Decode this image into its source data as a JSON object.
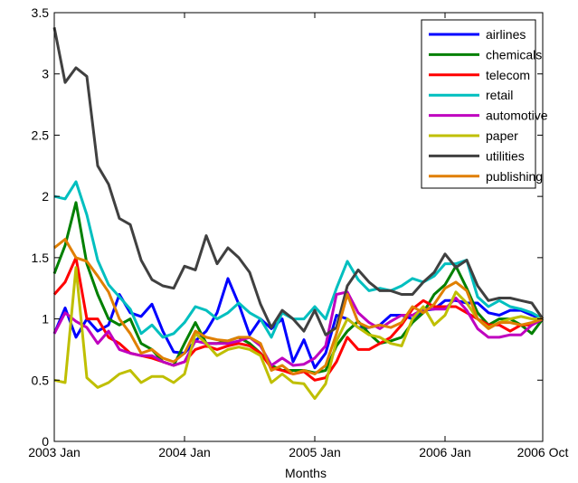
{
  "chart_data": {
    "type": "line",
    "xlabel": "Months",
    "ylabel": "",
    "x_tick_labels": [
      "2003 Jan",
      "2004 Jan",
      "2005 Jan",
      "2006 Jan",
      "2006 Oct"
    ],
    "x_tick_months": [
      0,
      12,
      24,
      36,
      45
    ],
    "y_ticks": [
      "0",
      "0.5",
      "1",
      "1.5",
      "2",
      "2.5",
      "3",
      "3.5"
    ],
    "xlim": [
      0,
      45
    ],
    "ylim": [
      0,
      3.5
    ],
    "grid": false,
    "legend_position": "top-right",
    "x": [
      0,
      1,
      2,
      3,
      4,
      5,
      6,
      7,
      8,
      9,
      10,
      11,
      12,
      13,
      14,
      15,
      16,
      17,
      18,
      19,
      20,
      21,
      22,
      23,
      24,
      25,
      26,
      27,
      28,
      29,
      30,
      31,
      32,
      33,
      34,
      35,
      36,
      37,
      38,
      39,
      40,
      41,
      42,
      43,
      44,
      45
    ],
    "series": [
      {
        "name": "airlines",
        "color": "#0000ff",
        "values": [
          0.88,
          1.09,
          0.85,
          1.0,
          0.9,
          0.95,
          1.2,
          1.05,
          1.02,
          1.12,
          0.9,
          0.73,
          0.72,
          0.82,
          0.9,
          1.05,
          1.33,
          1.12,
          0.87,
          1.0,
          0.92,
          1.0,
          0.65,
          0.83,
          0.6,
          0.72,
          1.03,
          1.0,
          0.93,
          0.93,
          0.95,
          1.03,
          1.03,
          1.0,
          1.07,
          1.08,
          1.15,
          1.15,
          1.13,
          1.13,
          1.05,
          1.03,
          1.07,
          1.07,
          1.03,
          1.0
        ]
      },
      {
        "name": "chemicals",
        "color": "#008000",
        "values": [
          1.37,
          1.6,
          1.95,
          1.45,
          1.2,
          1.0,
          0.95,
          1.0,
          0.8,
          0.75,
          0.65,
          0.62,
          0.8,
          0.97,
          0.8,
          0.8,
          0.82,
          0.85,
          0.8,
          0.72,
          0.62,
          0.58,
          0.58,
          0.58,
          0.56,
          0.58,
          0.78,
          0.9,
          0.98,
          0.88,
          0.8,
          0.82,
          0.85,
          0.97,
          1.05,
          1.2,
          1.28,
          1.43,
          1.25,
          1.05,
          0.95,
          1.0,
          1.0,
          0.95,
          0.88,
          1.0
        ]
      },
      {
        "name": "telecom",
        "color": "#ff0000",
        "values": [
          1.2,
          1.3,
          1.5,
          1.0,
          1.0,
          0.85,
          0.8,
          0.72,
          0.7,
          0.68,
          0.65,
          0.62,
          0.65,
          0.75,
          0.78,
          0.75,
          0.78,
          0.8,
          0.78,
          0.72,
          0.6,
          0.58,
          0.55,
          0.57,
          0.5,
          0.52,
          0.65,
          0.85,
          0.75,
          0.75,
          0.8,
          0.85,
          0.95,
          1.08,
          1.15,
          1.1,
          1.1,
          1.1,
          1.05,
          1.0,
          0.95,
          0.95,
          0.9,
          0.95,
          0.95,
          1.0
        ]
      },
      {
        "name": "retail",
        "color": "#00bfbf",
        "values": [
          2.0,
          1.98,
          2.12,
          1.85,
          1.48,
          1.28,
          1.18,
          1.08,
          0.88,
          0.95,
          0.85,
          0.88,
          0.97,
          1.1,
          1.07,
          1.0,
          1.05,
          1.13,
          1.05,
          1.0,
          0.85,
          1.05,
          1.0,
          1.0,
          1.1,
          1.0,
          1.25,
          1.47,
          1.32,
          1.23,
          1.25,
          1.23,
          1.27,
          1.33,
          1.3,
          1.35,
          1.45,
          1.45,
          1.48,
          1.18,
          1.1,
          1.15,
          1.1,
          1.08,
          1.05,
          1.0
        ]
      },
      {
        "name": "automotive",
        "color": "#bf00bf",
        "values": [
          0.88,
          1.05,
          0.98,
          0.93,
          0.8,
          0.9,
          0.75,
          0.72,
          0.7,
          0.7,
          0.65,
          0.62,
          0.65,
          0.82,
          0.8,
          0.8,
          0.8,
          0.82,
          0.85,
          0.78,
          0.62,
          0.68,
          0.62,
          0.63,
          0.68,
          0.78,
          1.2,
          1.22,
          1.05,
          0.97,
          0.92,
          0.98,
          1.03,
          1.03,
          1.08,
          1.08,
          1.08,
          1.17,
          1.07,
          0.92,
          0.85,
          0.85,
          0.87,
          0.87,
          0.95,
          1.0
        ]
      },
      {
        "name": "paper",
        "color": "#bfbf00",
        "values": [
          0.5,
          0.48,
          1.42,
          0.52,
          0.44,
          0.48,
          0.55,
          0.58,
          0.48,
          0.53,
          0.53,
          0.48,
          0.55,
          0.88,
          0.8,
          0.7,
          0.75,
          0.77,
          0.75,
          0.7,
          0.48,
          0.55,
          0.48,
          0.47,
          0.35,
          0.47,
          0.82,
          1.0,
          0.93,
          0.87,
          0.85,
          0.8,
          0.78,
          1.0,
          1.1,
          0.95,
          1.03,
          1.22,
          1.13,
          1.0,
          0.93,
          0.97,
          1.0,
          1.02,
          1.0,
          1.0
        ]
      },
      {
        "name": "utilities",
        "color": "#404040",
        "values": [
          3.38,
          2.93,
          3.05,
          2.98,
          2.25,
          2.1,
          1.82,
          1.77,
          1.48,
          1.32,
          1.27,
          1.25,
          1.43,
          1.4,
          1.68,
          1.45,
          1.58,
          1.5,
          1.38,
          1.12,
          0.93,
          1.07,
          1.0,
          0.9,
          1.07,
          0.87,
          0.93,
          1.27,
          1.4,
          1.3,
          1.23,
          1.23,
          1.2,
          1.2,
          1.3,
          1.38,
          1.53,
          1.42,
          1.48,
          1.27,
          1.15,
          1.17,
          1.17,
          1.15,
          1.13,
          1.0
        ]
      },
      {
        "name": "publishing",
        "color": "#e07f00",
        "values": [
          1.58,
          1.65,
          1.5,
          1.47,
          1.35,
          1.22,
          1.0,
          0.88,
          0.72,
          0.75,
          0.68,
          0.65,
          0.72,
          0.9,
          0.85,
          0.83,
          0.82,
          0.85,
          0.85,
          0.8,
          0.58,
          0.62,
          0.55,
          0.58,
          0.55,
          0.62,
          0.88,
          1.2,
          0.97,
          0.93,
          0.95,
          0.93,
          0.97,
          1.1,
          1.05,
          1.12,
          1.25,
          1.3,
          1.23,
          1.0,
          0.92,
          0.97,
          0.97,
          0.95,
          0.97,
          1.0
        ]
      }
    ]
  }
}
